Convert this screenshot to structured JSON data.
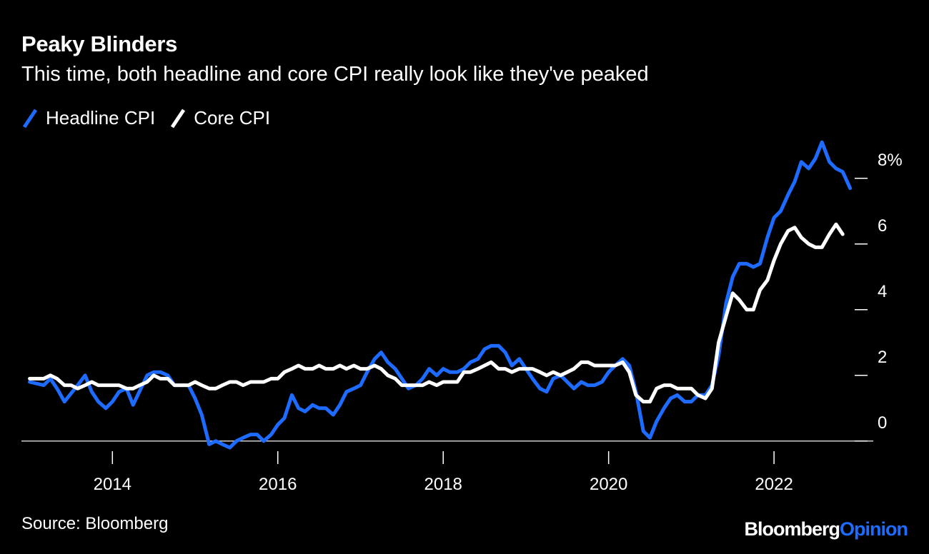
{
  "title": "Peaky Blinders",
  "subtitle": "This time, both headline and core CPI really look like they've peaked",
  "source": "Source: Bloomberg",
  "brand": {
    "name": "Bloomberg",
    "suffix": "Opinion"
  },
  "colors": {
    "background": "#000000",
    "headline": "#1e6bff",
    "core": "#ffffff",
    "brand_accent": "#1e6bff"
  },
  "legend": [
    {
      "label": "Headline CPI",
      "color": "#1e6bff"
    },
    {
      "label": "Core CPI",
      "color": "#ffffff"
    }
  ],
  "chart_data": {
    "type": "line",
    "title": "Peaky Blinders",
    "subtitle": "This time, both headline and core CPI really look like they've peaked",
    "xlabel": "",
    "ylabel": "",
    "xlim": [
      2012.9,
      2023.2
    ],
    "ylim": [
      -0.7,
      9.3
    ],
    "x_ticks": [
      2014,
      2016,
      2018,
      2020,
      2022
    ],
    "x_tick_labels": [
      "2014",
      "2016",
      "2018",
      "2020",
      "2022"
    ],
    "y_ticks": [
      0,
      2,
      4,
      6,
      8
    ],
    "y_tick_labels": [
      "0",
      "2",
      "4",
      "6",
      "8%"
    ],
    "legend_position": "top-left",
    "series": [
      {
        "name": "Headline CPI",
        "color": "#1e6bff",
        "points": [
          [
            2013.0,
            1.8
          ],
          [
            2013.17,
            1.7
          ],
          [
            2013.25,
            1.9
          ],
          [
            2013.33,
            1.6
          ],
          [
            2013.42,
            1.2
          ],
          [
            2013.58,
            1.7
          ],
          [
            2013.67,
            2.0
          ],
          [
            2013.75,
            1.5
          ],
          [
            2013.83,
            1.2
          ],
          [
            2013.92,
            1.0
          ],
          [
            2014.0,
            1.2
          ],
          [
            2014.08,
            1.5
          ],
          [
            2014.17,
            1.6
          ],
          [
            2014.25,
            1.1
          ],
          [
            2014.42,
            2.0
          ],
          [
            2014.5,
            2.1
          ],
          [
            2014.58,
            2.1
          ],
          [
            2014.67,
            2.0
          ],
          [
            2014.75,
            1.7
          ],
          [
            2014.83,
            1.7
          ],
          [
            2014.92,
            1.7
          ],
          [
            2015.0,
            1.3
          ],
          [
            2015.08,
            0.8
          ],
          [
            2015.17,
            -0.1
          ],
          [
            2015.25,
            0.0
          ],
          [
            2015.33,
            -0.1
          ],
          [
            2015.42,
            -0.2
          ],
          [
            2015.5,
            0.0
          ],
          [
            2015.58,
            0.1
          ],
          [
            2015.67,
            0.2
          ],
          [
            2015.75,
            0.2
          ],
          [
            2015.83,
            0.0
          ],
          [
            2015.92,
            0.2
          ],
          [
            2016.0,
            0.5
          ],
          [
            2016.08,
            0.7
          ],
          [
            2016.17,
            1.4
          ],
          [
            2016.25,
            1.0
          ],
          [
            2016.33,
            0.9
          ],
          [
            2016.42,
            1.1
          ],
          [
            2016.5,
            1.0
          ],
          [
            2016.58,
            1.0
          ],
          [
            2016.67,
            0.8
          ],
          [
            2016.75,
            1.1
          ],
          [
            2016.83,
            1.5
          ],
          [
            2016.92,
            1.6
          ],
          [
            2017.0,
            1.7
          ],
          [
            2017.08,
            2.1
          ],
          [
            2017.17,
            2.5
          ],
          [
            2017.25,
            2.7
          ],
          [
            2017.33,
            2.4
          ],
          [
            2017.42,
            2.2
          ],
          [
            2017.5,
            1.9
          ],
          [
            2017.58,
            1.6
          ],
          [
            2017.67,
            1.7
          ],
          [
            2017.75,
            1.9
          ],
          [
            2017.83,
            2.2
          ],
          [
            2017.92,
            2.0
          ],
          [
            2018.0,
            2.2
          ],
          [
            2018.08,
            2.1
          ],
          [
            2018.17,
            2.1
          ],
          [
            2018.25,
            2.2
          ],
          [
            2018.33,
            2.4
          ],
          [
            2018.42,
            2.5
          ],
          [
            2018.5,
            2.8
          ],
          [
            2018.58,
            2.9
          ],
          [
            2018.67,
            2.9
          ],
          [
            2018.75,
            2.7
          ],
          [
            2018.83,
            2.3
          ],
          [
            2018.92,
            2.5
          ],
          [
            2019.0,
            2.2
          ],
          [
            2019.08,
            1.9
          ],
          [
            2019.17,
            1.6
          ],
          [
            2019.25,
            1.5
          ],
          [
            2019.33,
            1.9
          ],
          [
            2019.42,
            2.0
          ],
          [
            2019.5,
            1.8
          ],
          [
            2019.58,
            1.6
          ],
          [
            2019.67,
            1.8
          ],
          [
            2019.75,
            1.7
          ],
          [
            2019.83,
            1.7
          ],
          [
            2019.92,
            1.8
          ],
          [
            2020.0,
            2.1
          ],
          [
            2020.08,
            2.3
          ],
          [
            2020.17,
            2.5
          ],
          [
            2020.25,
            2.3
          ],
          [
            2020.33,
            1.5
          ],
          [
            2020.42,
            0.3
          ],
          [
            2020.5,
            0.1
          ],
          [
            2020.58,
            0.6
          ],
          [
            2020.67,
            1.0
          ],
          [
            2020.75,
            1.3
          ],
          [
            2020.83,
            1.4
          ],
          [
            2020.92,
            1.2
          ],
          [
            2021.0,
            1.2
          ],
          [
            2021.08,
            1.4
          ],
          [
            2021.17,
            1.4
          ],
          [
            2021.25,
            1.7
          ],
          [
            2021.33,
            2.6
          ],
          [
            2021.42,
            4.2
          ],
          [
            2021.5,
            5.0
          ],
          [
            2021.58,
            5.4
          ],
          [
            2021.67,
            5.4
          ],
          [
            2021.75,
            5.3
          ],
          [
            2021.83,
            5.4
          ],
          [
            2021.92,
            6.2
          ],
          [
            2022.0,
            6.8
          ],
          [
            2022.08,
            7.0
          ],
          [
            2022.17,
            7.5
          ],
          [
            2022.25,
            7.9
          ],
          [
            2022.33,
            8.5
          ],
          [
            2022.42,
            8.3
          ],
          [
            2022.5,
            8.6
          ],
          [
            2022.58,
            9.1
          ],
          [
            2022.67,
            8.5
          ],
          [
            2022.75,
            8.3
          ],
          [
            2022.83,
            8.2
          ],
          [
            2022.92,
            7.7
          ]
        ]
      },
      {
        "name": "Core CPI",
        "color": "#ffffff",
        "points": [
          [
            2013.0,
            1.9
          ],
          [
            2013.17,
            1.9
          ],
          [
            2013.25,
            2.0
          ],
          [
            2013.33,
            1.9
          ],
          [
            2013.42,
            1.7
          ],
          [
            2013.5,
            1.7
          ],
          [
            2013.58,
            1.6
          ],
          [
            2013.67,
            1.7
          ],
          [
            2013.75,
            1.8
          ],
          [
            2013.83,
            1.7
          ],
          [
            2014.0,
            1.7
          ],
          [
            2014.08,
            1.7
          ],
          [
            2014.17,
            1.6
          ],
          [
            2014.25,
            1.6
          ],
          [
            2014.33,
            1.7
          ],
          [
            2014.42,
            1.8
          ],
          [
            2014.5,
            2.0
          ],
          [
            2014.58,
            1.9
          ],
          [
            2014.67,
            1.9
          ],
          [
            2014.75,
            1.7
          ],
          [
            2014.92,
            1.7
          ],
          [
            2015.0,
            1.8
          ],
          [
            2015.08,
            1.7
          ],
          [
            2015.17,
            1.6
          ],
          [
            2015.25,
            1.6
          ],
          [
            2015.33,
            1.7
          ],
          [
            2015.42,
            1.8
          ],
          [
            2015.5,
            1.8
          ],
          [
            2015.58,
            1.7
          ],
          [
            2015.67,
            1.8
          ],
          [
            2015.75,
            1.8
          ],
          [
            2015.83,
            1.8
          ],
          [
            2015.92,
            1.9
          ],
          [
            2016.0,
            1.9
          ],
          [
            2016.08,
            2.1
          ],
          [
            2016.17,
            2.2
          ],
          [
            2016.25,
            2.3
          ],
          [
            2016.33,
            2.2
          ],
          [
            2016.42,
            2.2
          ],
          [
            2016.5,
            2.3
          ],
          [
            2016.58,
            2.2
          ],
          [
            2016.67,
            2.2
          ],
          [
            2016.75,
            2.3
          ],
          [
            2016.83,
            2.2
          ],
          [
            2016.92,
            2.3
          ],
          [
            2017.0,
            2.2
          ],
          [
            2017.08,
            2.2
          ],
          [
            2017.17,
            2.3
          ],
          [
            2017.25,
            2.2
          ],
          [
            2017.33,
            2.0
          ],
          [
            2017.42,
            1.9
          ],
          [
            2017.5,
            1.7
          ],
          [
            2017.58,
            1.7
          ],
          [
            2017.67,
            1.7
          ],
          [
            2017.75,
            1.7
          ],
          [
            2017.83,
            1.8
          ],
          [
            2017.92,
            1.7
          ],
          [
            2018.0,
            1.8
          ],
          [
            2018.08,
            1.8
          ],
          [
            2018.17,
            1.8
          ],
          [
            2018.25,
            2.1
          ],
          [
            2018.33,
            2.1
          ],
          [
            2018.42,
            2.2
          ],
          [
            2018.5,
            2.3
          ],
          [
            2018.58,
            2.4
          ],
          [
            2018.67,
            2.2
          ],
          [
            2018.75,
            2.2
          ],
          [
            2018.83,
            2.1
          ],
          [
            2018.92,
            2.2
          ],
          [
            2019.0,
            2.2
          ],
          [
            2019.08,
            2.2
          ],
          [
            2019.17,
            2.1
          ],
          [
            2019.25,
            2.0
          ],
          [
            2019.33,
            2.1
          ],
          [
            2019.42,
            2.0
          ],
          [
            2019.5,
            2.1
          ],
          [
            2019.58,
            2.2
          ],
          [
            2019.67,
            2.4
          ],
          [
            2019.75,
            2.4
          ],
          [
            2019.83,
            2.3
          ],
          [
            2019.92,
            2.3
          ],
          [
            2020.0,
            2.3
          ],
          [
            2020.08,
            2.3
          ],
          [
            2020.17,
            2.4
          ],
          [
            2020.25,
            2.1
          ],
          [
            2020.33,
            1.4
          ],
          [
            2020.42,
            1.2
          ],
          [
            2020.5,
            1.2
          ],
          [
            2020.58,
            1.6
          ],
          [
            2020.67,
            1.7
          ],
          [
            2020.75,
            1.7
          ],
          [
            2020.83,
            1.6
          ],
          [
            2020.92,
            1.6
          ],
          [
            2021.0,
            1.6
          ],
          [
            2021.08,
            1.4
          ],
          [
            2021.17,
            1.3
          ],
          [
            2021.25,
            1.6
          ],
          [
            2021.33,
            3.0
          ],
          [
            2021.42,
            3.8
          ],
          [
            2021.5,
            4.5
          ],
          [
            2021.58,
            4.3
          ],
          [
            2021.67,
            4.0
          ],
          [
            2021.75,
            4.0
          ],
          [
            2021.83,
            4.6
          ],
          [
            2021.92,
            4.9
          ],
          [
            2022.0,
            5.5
          ],
          [
            2022.08,
            6.0
          ],
          [
            2022.17,
            6.4
          ],
          [
            2022.25,
            6.5
          ],
          [
            2022.33,
            6.2
          ],
          [
            2022.42,
            6.0
          ],
          [
            2022.5,
            5.9
          ],
          [
            2022.58,
            5.9
          ],
          [
            2022.67,
            6.3
          ],
          [
            2022.75,
            6.6
          ],
          [
            2022.83,
            6.3
          ]
        ]
      }
    ]
  }
}
